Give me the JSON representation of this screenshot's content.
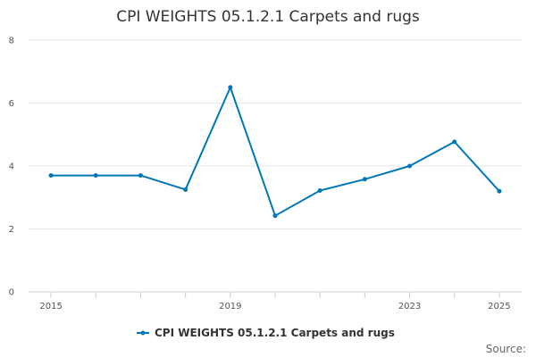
{
  "chart_data": {
    "type": "line",
    "title": "CPI WEIGHTS 05.1.2.1 Carpets and rugs",
    "xlabel": "",
    "ylabel": "",
    "x": [
      2015,
      2016,
      2017,
      2018,
      2019,
      2020,
      2021,
      2022,
      2023,
      2024,
      2025
    ],
    "x_tick_labels": [
      "2015",
      "2019",
      "2023",
      "2025"
    ],
    "y_ticks": [
      "0",
      "2",
      "4",
      "6",
      "8"
    ],
    "ylim": [
      0,
      8
    ],
    "grid": true,
    "legend_position": "bottom",
    "series": [
      {
        "name": "CPI WEIGHTS 05.1.2.1 Carpets and rugs",
        "color": "#0077b6",
        "values": [
          3.7,
          3.7,
          3.7,
          3.25,
          6.5,
          2.42,
          3.22,
          3.58,
          4.0,
          4.77,
          3.2
        ]
      }
    ],
    "source_label": "Source:"
  }
}
